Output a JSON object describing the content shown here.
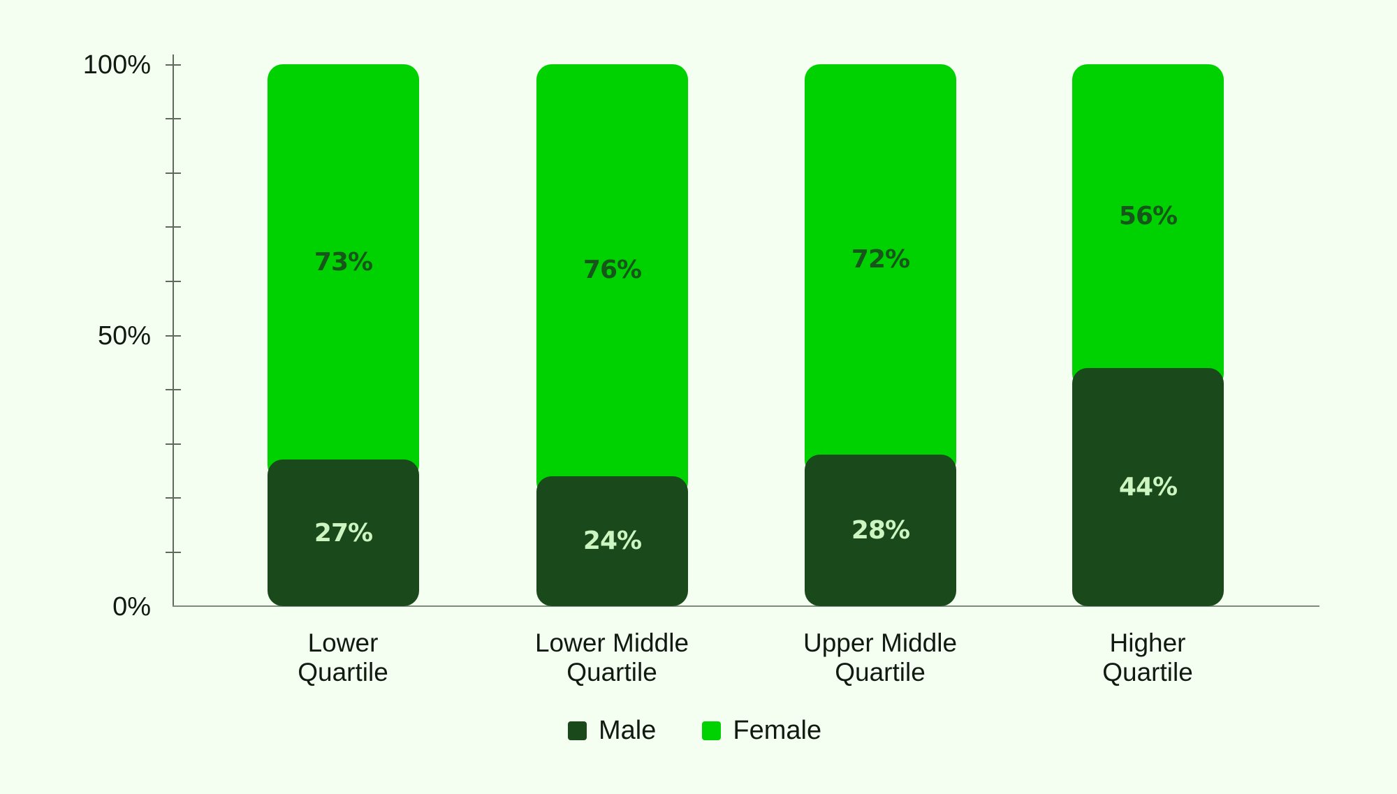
{
  "chart_data": {
    "type": "bar",
    "stacked": true,
    "normalized": true,
    "title": "",
    "xlabel": "",
    "ylabel": "",
    "ylim": [
      0,
      100
    ],
    "y_ticks": [
      "0%",
      "50%",
      "100%"
    ],
    "minor_tick_step": 10,
    "categories": [
      "Lower Quartile",
      "Lower Middle Quartile",
      "Upper Middle Quartile",
      "Higher Quartile"
    ],
    "series": [
      {
        "name": "Male",
        "color": "#1A4A1B",
        "values": [
          27,
          24,
          28,
          44
        ]
      },
      {
        "name": "Female",
        "color": "#00D100",
        "values": [
          73,
          76,
          72,
          56
        ]
      }
    ],
    "legend_position": "bottom",
    "grid": false
  },
  "axis": {
    "y_labels": [
      {
        "text": "100%",
        "value": 100
      },
      {
        "text": "50%",
        "value": 50
      },
      {
        "text": "0%",
        "value": 0
      }
    ]
  },
  "bars": [
    {
      "line1": "Lower",
      "line2": "Quartile",
      "male": 27,
      "female": 73,
      "male_label": "27%",
      "female_label": "73%"
    },
    {
      "line1": "Lower Middle",
      "line2": "Quartile",
      "male": 24,
      "female": 76,
      "male_label": "24%",
      "female_label": "76%"
    },
    {
      "line1": "Upper Middle",
      "line2": "Quartile",
      "male": 28,
      "female": 72,
      "male_label": "28%",
      "female_label": "72%"
    },
    {
      "line1": "Higher",
      "line2": "Quartile",
      "male": 44,
      "female": 56,
      "male_label": "44%",
      "female_label": "56%"
    }
  ],
  "legend": {
    "items": [
      {
        "label": "Male",
        "color": "#1A4A1B"
      },
      {
        "label": "Female",
        "color": "#00D100"
      }
    ]
  },
  "colors": {
    "background": "#F4FEF1",
    "male": "#1A4A1B",
    "female": "#00D100",
    "male_label_text": "#CDF5C2",
    "female_label_text": "#17561A",
    "axis": "#5C6B5C"
  }
}
